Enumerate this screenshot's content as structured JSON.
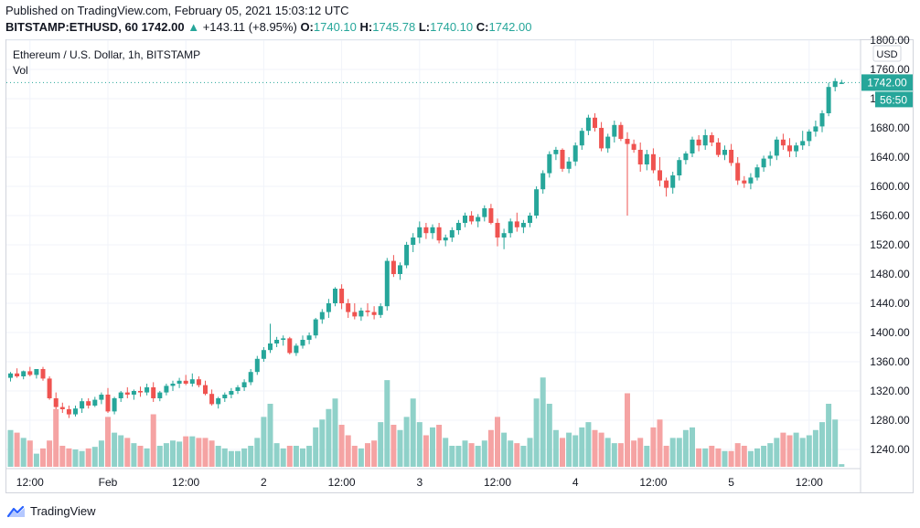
{
  "header": {
    "published": "Published on TradingView.com, February 05, 2021 15:03:12 UTC",
    "symbol": "BITSTAMP:ETHUSD, 60",
    "last": "1742.00",
    "change_arrow": "▲",
    "change": "+143.11 (+8.95%)",
    "o_label": "O:",
    "o_value": "1740.10",
    "h_label": "H:",
    "h_value": "1745.78",
    "l_label": "L:",
    "l_value": "1740.10",
    "c_label": "C:",
    "c_value": "1742.00"
  },
  "legend": {
    "title": "Ethereum / U.S. Dollar, 1h, BITSTAMP",
    "volume": "Vol"
  },
  "footer": {
    "brand": "TradingView",
    "logo_icon": "tradingview-logo-icon"
  },
  "colors": {
    "up": "#26a69a",
    "down": "#ef5350",
    "up_volume": "#8fd1c9",
    "down_volume": "#f5a3a3",
    "grid": "#f0f3fa",
    "axis_text": "#131722",
    "price_line": "#26a69a"
  },
  "chart_data": {
    "type": "candlestick",
    "interval": "1h",
    "currency_label": "USD",
    "price_label": "1742.00",
    "countdown_label": "56:50",
    "y_ticks": [
      "1800.00",
      "1760.00",
      "1720.00",
      "1680.00",
      "1640.00",
      "1600.00",
      "1560.00",
      "1520.00",
      "1480.00",
      "1440.00",
      "1400.00",
      "1360.00",
      "1320.00",
      "1280.00",
      "1240.00"
    ],
    "ylim": [
      1215,
      1800
    ],
    "x_ticks": [
      {
        "label": "12:00",
        "index": 3
      },
      {
        "label": "Feb",
        "index": 15
      },
      {
        "label": "12:00",
        "index": 27
      },
      {
        "label": "2",
        "index": 39
      },
      {
        "label": "12:00",
        "index": 51
      },
      {
        "label": "3",
        "index": 63
      },
      {
        "label": "12:00",
        "index": 75
      },
      {
        "label": "4",
        "index": 87
      },
      {
        "label": "12:00",
        "index": 99
      },
      {
        "label": "5",
        "index": 111
      },
      {
        "label": "12:00",
        "index": 123
      }
    ],
    "grid": true,
    "volume_max": 2.0,
    "candles": [
      [
        1338,
        1346,
        1333,
        1344,
        0.7
      ],
      [
        1344,
        1351,
        1338,
        1340,
        0.65
      ],
      [
        1340,
        1348,
        1336,
        1347,
        0.55
      ],
      [
        1347,
        1353,
        1340,
        1342,
        0.5
      ],
      [
        1342,
        1350,
        1337,
        1350,
        0.25
      ],
      [
        1350,
        1353,
        1334,
        1337,
        0.35
      ],
      [
        1337,
        1340,
        1308,
        1310,
        0.5
      ],
      [
        1310,
        1318,
        1295,
        1298,
        1.1
      ],
      [
        1298,
        1304,
        1290,
        1295,
        0.4
      ],
      [
        1295,
        1300,
        1283,
        1288,
        0.35
      ],
      [
        1288,
        1300,
        1285,
        1296,
        0.33
      ],
      [
        1296,
        1310,
        1290,
        1306,
        0.3
      ],
      [
        1306,
        1310,
        1296,
        1300,
        0.35
      ],
      [
        1300,
        1312,
        1298,
        1308,
        0.38
      ],
      [
        1308,
        1318,
        1302,
        1315,
        0.5
      ],
      [
        1315,
        1324,
        1290,
        1292,
        0.95
      ],
      [
        1292,
        1312,
        1288,
        1310,
        0.65
      ],
      [
        1310,
        1320,
        1305,
        1318,
        0.6
      ],
      [
        1318,
        1325,
        1310,
        1315,
        0.55
      ],
      [
        1315,
        1322,
        1308,
        1320,
        0.45
      ],
      [
        1320,
        1326,
        1312,
        1318,
        0.4
      ],
      [
        1318,
        1330,
        1314,
        1325,
        0.35
      ],
      [
        1325,
        1332,
        1305,
        1310,
        1.0
      ],
      [
        1310,
        1320,
        1306,
        1318,
        0.4
      ],
      [
        1318,
        1330,
        1314,
        1327,
        0.45
      ],
      [
        1327,
        1334,
        1320,
        1330,
        0.5
      ],
      [
        1330,
        1338,
        1324,
        1334,
        0.48
      ],
      [
        1334,
        1342,
        1328,
        1330,
        0.58
      ],
      [
        1330,
        1344,
        1326,
        1336,
        0.58
      ],
      [
        1336,
        1340,
        1325,
        1328,
        0.55
      ],
      [
        1328,
        1334,
        1314,
        1316,
        0.55
      ],
      [
        1316,
        1322,
        1300,
        1302,
        0.5
      ],
      [
        1302,
        1312,
        1296,
        1310,
        0.4
      ],
      [
        1310,
        1318,
        1305,
        1315,
        0.35
      ],
      [
        1315,
        1324,
        1310,
        1320,
        0.3
      ],
      [
        1320,
        1328,
        1316,
        1325,
        0.3
      ],
      [
        1325,
        1336,
        1320,
        1332,
        0.35
      ],
      [
        1332,
        1350,
        1328,
        1346,
        0.4
      ],
      [
        1346,
        1368,
        1342,
        1364,
        0.55
      ],
      [
        1364,
        1380,
        1360,
        1376,
        0.95
      ],
      [
        1376,
        1412,
        1372,
        1385,
        1.2
      ],
      [
        1385,
        1394,
        1380,
        1390,
        0.45
      ],
      [
        1390,
        1396,
        1382,
        1392,
        0.35
      ],
      [
        1392,
        1394,
        1370,
        1372,
        0.4
      ],
      [
        1372,
        1385,
        1368,
        1382,
        0.4
      ],
      [
        1382,
        1396,
        1378,
        1390,
        0.35
      ],
      [
        1390,
        1400,
        1384,
        1396,
        0.4
      ],
      [
        1396,
        1420,
        1392,
        1418,
        0.75
      ],
      [
        1418,
        1432,
        1412,
        1428,
        0.9
      ],
      [
        1428,
        1446,
        1420,
        1440,
        1.1
      ],
      [
        1440,
        1462,
        1436,
        1460,
        1.3
      ],
      [
        1460,
        1466,
        1432,
        1440,
        0.8
      ],
      [
        1440,
        1446,
        1420,
        1428,
        0.6
      ],
      [
        1428,
        1440,
        1418,
        1422,
        0.4
      ],
      [
        1422,
        1434,
        1416,
        1430,
        0.35
      ],
      [
        1430,
        1440,
        1422,
        1428,
        0.45
      ],
      [
        1428,
        1436,
        1418,
        1424,
        0.5
      ],
      [
        1424,
        1440,
        1420,
        1436,
        0.85
      ],
      [
        1436,
        1502,
        1430,
        1498,
        1.65
      ],
      [
        1498,
        1506,
        1476,
        1480,
        0.8
      ],
      [
        1480,
        1496,
        1472,
        1492,
        0.7
      ],
      [
        1492,
        1524,
        1488,
        1520,
        0.95
      ],
      [
        1520,
        1536,
        1510,
        1530,
        1.3
      ],
      [
        1530,
        1552,
        1522,
        1544,
        0.85
      ],
      [
        1544,
        1550,
        1528,
        1536,
        0.6
      ],
      [
        1536,
        1548,
        1528,
        1544,
        0.75
      ],
      [
        1544,
        1550,
        1522,
        1526,
        0.8
      ],
      [
        1526,
        1534,
        1518,
        1530,
        0.55
      ],
      [
        1530,
        1544,
        1524,
        1540,
        0.4
      ],
      [
        1540,
        1554,
        1534,
        1550,
        0.4
      ],
      [
        1550,
        1564,
        1544,
        1560,
        0.5
      ],
      [
        1560,
        1566,
        1548,
        1552,
        0.45
      ],
      [
        1552,
        1562,
        1544,
        1558,
        0.4
      ],
      [
        1558,
        1574,
        1552,
        1570,
        0.5
      ],
      [
        1570,
        1576,
        1548,
        1550,
        0.7
      ],
      [
        1550,
        1556,
        1518,
        1530,
        0.95
      ],
      [
        1530,
        1542,
        1514,
        1536,
        0.65
      ],
      [
        1536,
        1556,
        1530,
        1552,
        0.5
      ],
      [
        1552,
        1564,
        1538,
        1544,
        0.45
      ],
      [
        1544,
        1554,
        1536,
        1550,
        0.4
      ],
      [
        1550,
        1564,
        1544,
        1560,
        0.55
      ],
      [
        1560,
        1600,
        1556,
        1596,
        1.3
      ],
      [
        1596,
        1622,
        1590,
        1618,
        1.7
      ],
      [
        1618,
        1648,
        1612,
        1644,
        1.2
      ],
      [
        1644,
        1654,
        1636,
        1650,
        0.7
      ],
      [
        1650,
        1652,
        1620,
        1624,
        0.55
      ],
      [
        1624,
        1640,
        1618,
        1634,
        0.65
      ],
      [
        1634,
        1660,
        1628,
        1656,
        0.6
      ],
      [
        1656,
        1680,
        1650,
        1676,
        0.75
      ],
      [
        1676,
        1698,
        1670,
        1694,
        0.85
      ],
      [
        1694,
        1700,
        1675,
        1680,
        0.7
      ],
      [
        1680,
        1688,
        1648,
        1652,
        0.65
      ],
      [
        1652,
        1672,
        1646,
        1668,
        0.55
      ],
      [
        1668,
        1690,
        1660,
        1684,
        0.45
      ],
      [
        1684,
        1688,
        1662,
        1665,
        0.45
      ],
      [
        1665,
        1674,
        1560,
        1658,
        1.4
      ],
      [
        1658,
        1664,
        1646,
        1650,
        0.5
      ],
      [
        1650,
        1660,
        1620,
        1630,
        0.55
      ],
      [
        1630,
        1650,
        1622,
        1644,
        0.4
      ],
      [
        1644,
        1652,
        1618,
        1622,
        0.75
      ],
      [
        1622,
        1640,
        1600,
        1608,
        0.9
      ],
      [
        1608,
        1612,
        1586,
        1598,
        0.4
      ],
      [
        1598,
        1620,
        1590,
        1615,
        0.55
      ],
      [
        1615,
        1640,
        1608,
        1636,
        0.55
      ],
      [
        1636,
        1648,
        1630,
        1645,
        0.7
      ],
      [
        1645,
        1668,
        1640,
        1664,
        0.75
      ],
      [
        1664,
        1670,
        1648,
        1656,
        0.35
      ],
      [
        1656,
        1678,
        1650,
        1670,
        0.35
      ],
      [
        1670,
        1674,
        1655,
        1660,
        0.4
      ],
      [
        1660,
        1666,
        1640,
        1643,
        0.35
      ],
      [
        1643,
        1656,
        1636,
        1650,
        0.3
      ],
      [
        1650,
        1658,
        1628,
        1632,
        0.3
      ],
      [
        1632,
        1640,
        1602,
        1608,
        0.45
      ],
      [
        1608,
        1614,
        1598,
        1604,
        0.4
      ],
      [
        1604,
        1618,
        1596,
        1612,
        0.3
      ],
      [
        1612,
        1630,
        1608,
        1626,
        0.35
      ],
      [
        1626,
        1642,
        1620,
        1638,
        0.4
      ],
      [
        1638,
        1648,
        1628,
        1642,
        0.45
      ],
      [
        1642,
        1668,
        1636,
        1664,
        0.55
      ],
      [
        1664,
        1672,
        1650,
        1656,
        0.65
      ],
      [
        1656,
        1666,
        1640,
        1648,
        0.6
      ],
      [
        1648,
        1660,
        1640,
        1656,
        0.65
      ],
      [
        1656,
        1676,
        1650,
        1662,
        0.55
      ],
      [
        1662,
        1678,
        1655,
        1675,
        0.6
      ],
      [
        1675,
        1690,
        1668,
        1682,
        0.7
      ],
      [
        1682,
        1704,
        1674,
        1700,
        0.85
      ],
      [
        1700,
        1742,
        1696,
        1736,
        1.2
      ],
      [
        1736,
        1748,
        1730,
        1744,
        0.9
      ],
      [
        1740.1,
        1745.78,
        1740.1,
        1742,
        0.05
      ]
    ]
  }
}
